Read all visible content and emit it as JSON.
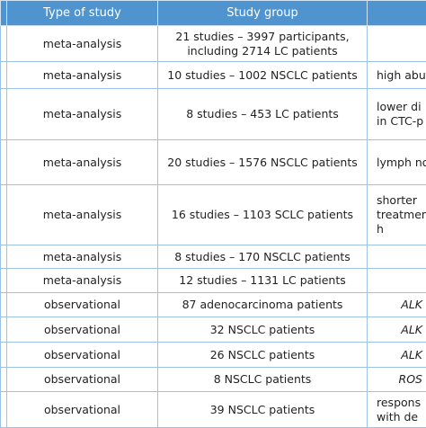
{
  "table": {
    "header": [
      "Type of study",
      "Study group"
    ],
    "rows": [
      {
        "type": "meta-analysis",
        "group": [
          "21 studies – 3997 participants,",
          "including 2714 LC patients"
        ],
        "note": []
      },
      {
        "type": "meta-analysis",
        "group": [
          "10 studies – 1002 NSCLC patients"
        ],
        "note": [
          "high abu"
        ]
      },
      {
        "type": "meta-analysis",
        "group": [
          "8 studies – 453 LC patients"
        ],
        "note": [
          "lower di",
          "in CTC-p"
        ]
      },
      {
        "type": "meta-analysis",
        "group": [
          "20 studies – 1576 NSCLC patients"
        ],
        "note": [
          "lymph no"
        ]
      },
      {
        "type": "meta-analysis",
        "group": [
          "16 studies – 1103 SCLC patients"
        ],
        "note": [
          "shorter",
          "treatmen",
          "h"
        ]
      },
      {
        "type": "meta-analysis",
        "group": [
          "8 studies – 170 NSCLC patients"
        ],
        "note": []
      },
      {
        "type": "meta-analysis",
        "group": [
          "12 studies – 1131 LC patients"
        ],
        "note": []
      },
      {
        "type": "observational",
        "group": [
          "87 adenocarcinoma patients"
        ],
        "note": [
          "ALK"
        ]
      },
      {
        "type": "observational",
        "group": [
          "32 NSCLC patients"
        ],
        "note": [
          "ALK"
        ]
      },
      {
        "type": "observational",
        "group": [
          "26 NSCLC patients"
        ],
        "note": [
          "ALK"
        ]
      },
      {
        "type": "observational",
        "group": [
          "8 NSCLC patients"
        ],
        "note": [
          "ROS"
        ]
      },
      {
        "type": "observational",
        "group": [
          "39 NSCLC patients"
        ],
        "note": [
          "respons",
          "with de"
        ]
      }
    ]
  }
}
